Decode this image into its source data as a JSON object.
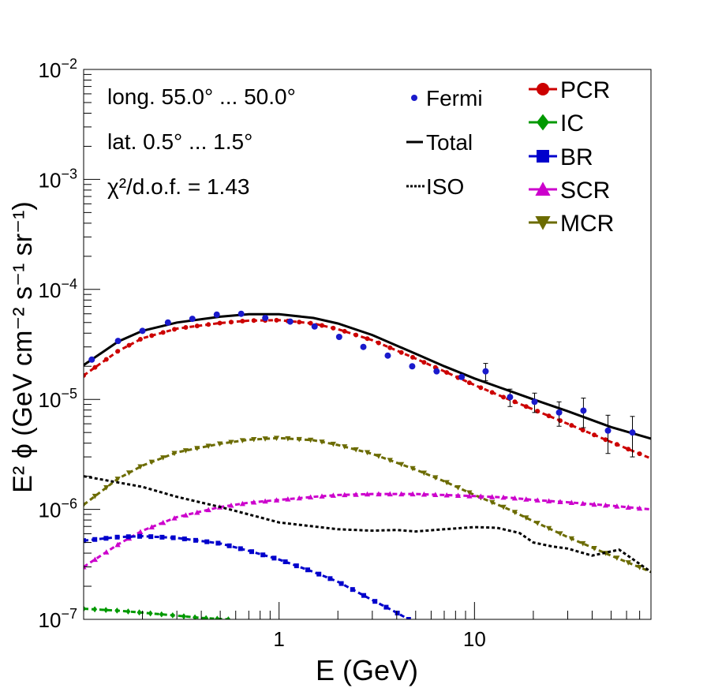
{
  "chart_data": {
    "type": "scatter",
    "xlabel": "E (GeV)",
    "ylabel": "E² ϕ (GeV cm⁻² s⁻¹ sr⁻¹)",
    "xscale": "log",
    "yscale": "log",
    "xlim": [
      0.1,
      80
    ],
    "ylim": [
      1e-07,
      0.01
    ],
    "x_ticks": [
      {
        "v": 1,
        "label": "1"
      },
      {
        "v": 10,
        "label": "10"
      }
    ],
    "y_ticks": [
      {
        "v": 1e-07,
        "base": "10",
        "exp": "−7"
      },
      {
        "v": 1e-06,
        "base": "10",
        "exp": "−6"
      },
      {
        "v": 1e-05,
        "base": "10",
        "exp": "−5"
      },
      {
        "v": 0.0001,
        "base": "10",
        "exp": "−4"
      },
      {
        "v": 0.001,
        "base": "10",
        "exp": "−3"
      },
      {
        "v": 0.01,
        "base": "10",
        "exp": "−2"
      }
    ],
    "annotations": [
      {
        "text": "long. 55.0° ... 50.0°"
      },
      {
        "text": "lat. 0.5° ... 1.5°"
      },
      {
        "text": "χ²/d.o.f. = 1.43"
      }
    ],
    "legend_left": [
      {
        "name": "Fermi",
        "style": "points"
      },
      {
        "name": "Total",
        "style": "solid"
      },
      {
        "name": "ISO",
        "style": "dotted"
      }
    ],
    "legend_right": [
      {
        "name": "PCR",
        "marker": "circle"
      },
      {
        "name": "IC",
        "marker": "diamond"
      },
      {
        "name": "BR",
        "marker": "square"
      },
      {
        "name": "SCR",
        "marker": "triangle-up"
      },
      {
        "name": "MCR",
        "marker": "triangle-down"
      }
    ],
    "fermi": [
      {
        "x": 0.11,
        "y": 2.3e-05
      },
      {
        "x": 0.15,
        "y": 3.4e-05
      },
      {
        "x": 0.2,
        "y": 4.2e-05
      },
      {
        "x": 0.27,
        "y": 5e-05
      },
      {
        "x": 0.36,
        "y": 5.4e-05
      },
      {
        "x": 0.48,
        "y": 5.9e-05
      },
      {
        "x": 0.64,
        "y": 6e-05
      },
      {
        "x": 0.85,
        "y": 5.5e-05
      },
      {
        "x": 1.14,
        "y": 5.1e-05
      },
      {
        "x": 1.52,
        "y": 4.6e-05
      },
      {
        "x": 2.03,
        "y": 3.7e-05
      },
      {
        "x": 2.7,
        "y": 3e-05
      },
      {
        "x": 3.6,
        "y": 2.5e-05
      },
      {
        "x": 4.8,
        "y": 2e-05
      },
      {
        "x": 6.4,
        "y": 1.8e-05
      },
      {
        "x": 8.6,
        "y": 1.6e-05
      },
      {
        "x": 11.4,
        "y": 1.8e-05,
        "err": 0.18
      },
      {
        "x": 15.2,
        "y": 1.05e-05,
        "err": 0.18
      },
      {
        "x": 20.3,
        "y": 9.5e-06,
        "err": 0.2
      },
      {
        "x": 27.1,
        "y": 7.6e-06,
        "err": 0.25
      },
      {
        "x": 36.1,
        "y": 7.9e-06,
        "err": 0.3
      },
      {
        "x": 48.2,
        "y": 5.2e-06,
        "err": 0.38
      },
      {
        "x": 64.3,
        "y": 5e-06,
        "err": 0.4
      }
    ],
    "series": [
      {
        "name": "Total",
        "color": "#000000",
        "style": "solid",
        "points": [
          [
            0.1,
            2.05e-05
          ],
          [
            0.15,
            3.35e-05
          ],
          [
            0.2,
            4.2e-05
          ],
          [
            0.3,
            5e-05
          ],
          [
            0.5,
            5.65e-05
          ],
          [
            0.7,
            5.95e-05
          ],
          [
            1.0,
            5.95e-05
          ],
          [
            1.5,
            5.5e-05
          ],
          [
            2.0,
            4.9e-05
          ],
          [
            3.0,
            3.85e-05
          ],
          [
            5.0,
            2.6e-05
          ],
          [
            7.0,
            2e-05
          ],
          [
            10.0,
            1.55e-05
          ],
          [
            15.0,
            1.2e-05
          ],
          [
            20.0,
            1e-05
          ],
          [
            30.0,
            7.8e-06
          ],
          [
            50.0,
            5.6e-06
          ],
          [
            80.0,
            4.4e-06
          ]
        ]
      },
      {
        "name": "PCR",
        "color": "#cc0000",
        "style": "dashed-marker",
        "marker": "circle",
        "points": [
          [
            0.1,
            1.65e-05
          ],
          [
            0.15,
            2.75e-05
          ],
          [
            0.2,
            3.6e-05
          ],
          [
            0.3,
            4.4e-05
          ],
          [
            0.5,
            4.95e-05
          ],
          [
            0.7,
            5.2e-05
          ],
          [
            1.0,
            5.25e-05
          ],
          [
            1.5,
            4.9e-05
          ],
          [
            2.0,
            4.35e-05
          ],
          [
            3.0,
            3.45e-05
          ],
          [
            5.0,
            2.35e-05
          ],
          [
            7.0,
            1.8e-05
          ],
          [
            10.0,
            1.35e-05
          ],
          [
            15.0,
            1e-05
          ],
          [
            20.0,
            8.1e-06
          ],
          [
            30.0,
            6e-06
          ],
          [
            50.0,
            4.1e-06
          ],
          [
            80.0,
            2.9e-06
          ]
        ]
      },
      {
        "name": "MCR",
        "color": "#6b6b00",
        "style": "dashed-marker",
        "marker": "triangle-down",
        "points": [
          [
            0.1,
            1.1e-06
          ],
          [
            0.15,
            1.9e-06
          ],
          [
            0.2,
            2.5e-06
          ],
          [
            0.3,
            3.3e-06
          ],
          [
            0.5,
            3.95e-06
          ],
          [
            0.7,
            4.3e-06
          ],
          [
            1.0,
            4.45e-06
          ],
          [
            1.5,
            4.25e-06
          ],
          [
            2.0,
            3.85e-06
          ],
          [
            3.0,
            3.2e-06
          ],
          [
            5.0,
            2.3e-06
          ],
          [
            7.0,
            1.8e-06
          ],
          [
            10.0,
            1.35e-06
          ],
          [
            15.0,
            1e-06
          ],
          [
            20.0,
            7.8e-07
          ],
          [
            30.0,
            5.6e-07
          ],
          [
            50.0,
            3.8e-07
          ],
          [
            80.0,
            2.7e-07
          ]
        ]
      },
      {
        "name": "SCR",
        "color": "#cc00cc",
        "style": "dashed-marker",
        "marker": "triangle-up",
        "points": [
          [
            0.1,
            3e-07
          ],
          [
            0.15,
            4.8e-07
          ],
          [
            0.2,
            6.4e-07
          ],
          [
            0.3,
            8.5e-07
          ],
          [
            0.5,
            1.05e-06
          ],
          [
            0.7,
            1.15e-06
          ],
          [
            1.0,
            1.22e-06
          ],
          [
            1.5,
            1.3e-06
          ],
          [
            2.0,
            1.35e-06
          ],
          [
            3.0,
            1.38e-06
          ],
          [
            5.0,
            1.38e-06
          ],
          [
            7.0,
            1.35e-06
          ],
          [
            10.0,
            1.32e-06
          ],
          [
            15.0,
            1.28e-06
          ],
          [
            20.0,
            1.22e-06
          ],
          [
            30.0,
            1.16e-06
          ],
          [
            50.0,
            1.08e-06
          ],
          [
            80.0,
            1e-06
          ]
        ]
      },
      {
        "name": "ISO",
        "color": "#000000",
        "style": "dotted",
        "points": [
          [
            0.1,
            2e-06
          ],
          [
            0.2,
            1.6e-06
          ],
          [
            0.3,
            1.3e-06
          ],
          [
            0.5,
            1.05e-06
          ],
          [
            0.7,
            9e-07
          ],
          [
            1.0,
            7.6e-07
          ],
          [
            1.5,
            7e-07
          ],
          [
            2.0,
            6.6e-07
          ],
          [
            3.0,
            6.4e-07
          ],
          [
            4.0,
            6.5e-07
          ],
          [
            5.0,
            6.3e-07
          ],
          [
            7.0,
            6.6e-07
          ],
          [
            10.0,
            6.9e-07
          ],
          [
            13.0,
            6.8e-07
          ],
          [
            17.0,
            6.1e-07
          ],
          [
            20.0,
            5e-07
          ],
          [
            25.0,
            4.6e-07
          ],
          [
            30.0,
            4.4e-07
          ],
          [
            40.0,
            3.8e-07
          ],
          [
            55.0,
            4.3e-07
          ],
          [
            65.0,
            3.5e-07
          ],
          [
            80.0,
            2.7e-07
          ]
        ]
      },
      {
        "name": "BR",
        "color": "#0000cc",
        "style": "dashed-marker",
        "marker": "square",
        "points": [
          [
            0.1,
            5.2e-07
          ],
          [
            0.15,
            5.6e-07
          ],
          [
            0.2,
            5.7e-07
          ],
          [
            0.3,
            5.5e-07
          ],
          [
            0.5,
            4.9e-07
          ],
          [
            0.7,
            4.2e-07
          ],
          [
            1.0,
            3.5e-07
          ],
          [
            1.5,
            2.7e-07
          ],
          [
            2.0,
            2.2e-07
          ],
          [
            3.0,
            1.5e-07
          ],
          [
            4.0,
            1.15e-07
          ],
          [
            4.6,
            1e-07
          ]
        ]
      },
      {
        "name": "IC",
        "color": "#009900",
        "style": "dashed-marker",
        "marker": "diamond",
        "points": [
          [
            0.1,
            1.25e-07
          ],
          [
            0.15,
            1.2e-07
          ],
          [
            0.2,
            1.15e-07
          ],
          [
            0.3,
            1.08e-07
          ],
          [
            0.4,
            1.03e-07
          ],
          [
            0.55,
            1e-07
          ]
        ]
      }
    ]
  }
}
